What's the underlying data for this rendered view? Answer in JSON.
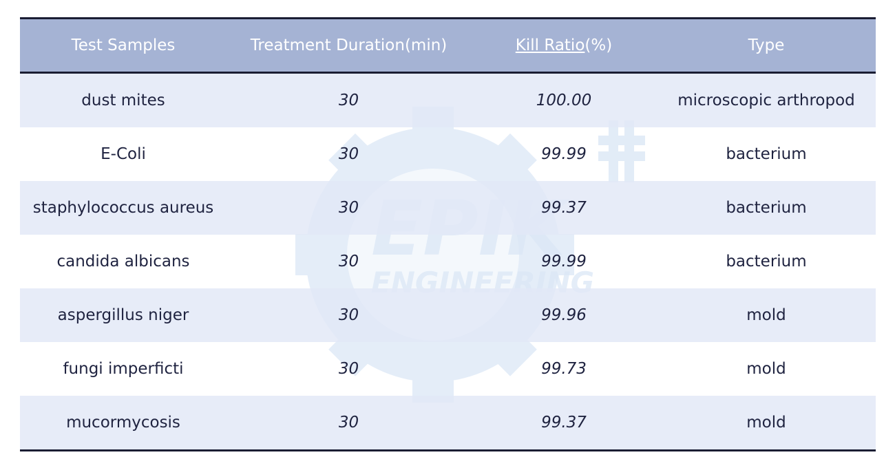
{
  "watermark": {
    "line1": "EPIK",
    "line2": "ENGINEERING"
  },
  "table": {
    "headers": {
      "samples": "Test Samples",
      "duration": "Treatment Duration(min)",
      "kill_word": "Kill Ratio",
      "kill_unit": "(%)",
      "type": "Type"
    },
    "rows": [
      {
        "sample": "dust mites",
        "duration": "30",
        "kill": "100.00",
        "type": "microscopic arthropod"
      },
      {
        "sample": "E-Coli",
        "duration": "30",
        "kill": "99.99",
        "type": "bacterium"
      },
      {
        "sample": "staphylococcus aureus",
        "duration": "30",
        "kill": "99.37",
        "type": "bacterium"
      },
      {
        "sample": "candida albicans",
        "duration": "30",
        "kill": "99.99",
        "type": "bacterium"
      },
      {
        "sample": "aspergillus niger",
        "duration": "30",
        "kill": "99.96",
        "type": "mold"
      },
      {
        "sample": "fungi imperficti",
        "duration": "30",
        "kill": "99.73",
        "type": "mold"
      },
      {
        "sample": "mucormycosis",
        "duration": "30",
        "kill": "99.37",
        "type": "mold"
      }
    ]
  }
}
